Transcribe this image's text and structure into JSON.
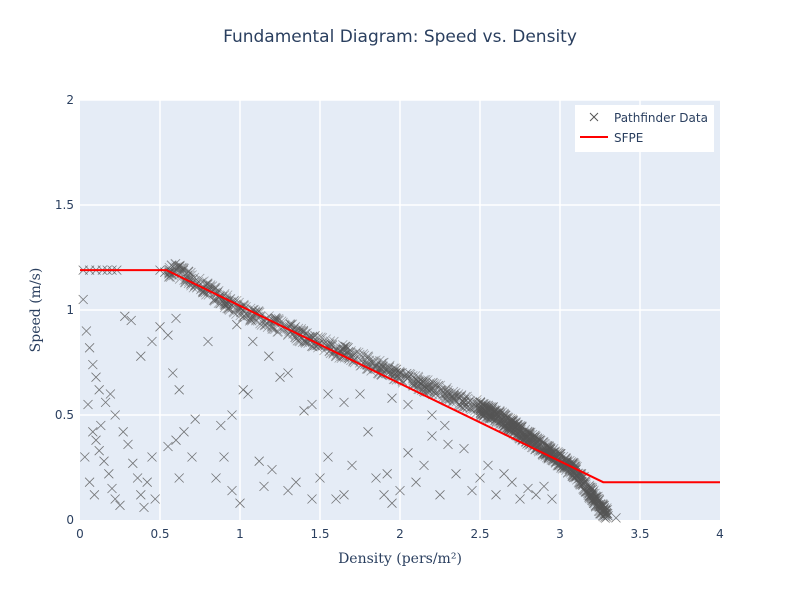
{
  "chart_data": {
    "type": "scatter",
    "title": "Fundamental Diagram: Speed vs. Density",
    "xlabel": "Density (pers/m²)",
    "ylabel": "Speed (m/s)",
    "xlim": [
      0,
      4
    ],
    "ylim": [
      0,
      2
    ],
    "x_ticks": [
      "0",
      "0.5",
      "1",
      "1.5",
      "2",
      "2.5",
      "3",
      "3.5",
      "4"
    ],
    "y_ticks": [
      "0",
      "0.5",
      "1",
      "1.5",
      "2"
    ],
    "grid": true,
    "legend_position": "top-right",
    "series": [
      {
        "name": "Pathfinder Data",
        "kind": "markers",
        "marker": "x",
        "color": "#555555",
        "points": [
          [
            0.02,
            1.19
          ],
          [
            0.06,
            1.19
          ],
          [
            0.1,
            1.19
          ],
          [
            0.14,
            1.19
          ],
          [
            0.17,
            1.19
          ],
          [
            0.2,
            1.19
          ],
          [
            0.23,
            1.19
          ],
          [
            0.5,
            1.19
          ],
          [
            0.53,
            1.18
          ],
          [
            0.56,
            1.18
          ],
          [
            0.02,
            1.05
          ],
          [
            0.04,
            0.9
          ],
          [
            0.06,
            0.82
          ],
          [
            0.08,
            0.74
          ],
          [
            0.1,
            0.68
          ],
          [
            0.12,
            0.62
          ],
          [
            0.05,
            0.55
          ],
          [
            0.08,
            0.42
          ],
          [
            0.1,
            0.38
          ],
          [
            0.12,
            0.33
          ],
          [
            0.15,
            0.28
          ],
          [
            0.18,
            0.22
          ],
          [
            0.2,
            0.15
          ],
          [
            0.22,
            0.1
          ],
          [
            0.25,
            0.07
          ],
          [
            0.03,
            0.3
          ],
          [
            0.06,
            0.18
          ],
          [
            0.09,
            0.12
          ],
          [
            0.13,
            0.45
          ],
          [
            0.16,
            0.56
          ],
          [
            0.19,
            0.6
          ],
          [
            0.22,
            0.5
          ],
          [
            0.27,
            0.42
          ],
          [
            0.3,
            0.36
          ],
          [
            0.33,
            0.27
          ],
          [
            0.36,
            0.2
          ],
          [
            0.38,
            0.12
          ],
          [
            0.4,
            0.06
          ],
          [
            0.32,
            0.95
          ],
          [
            0.28,
            0.97
          ],
          [
            0.38,
            0.78
          ],
          [
            0.45,
            0.85
          ],
          [
            0.5,
            0.92
          ],
          [
            0.55,
            0.88
          ],
          [
            0.6,
            0.96
          ],
          [
            0.58,
            0.7
          ],
          [
            0.62,
            0.62
          ],
          [
            0.65,
            0.42
          ],
          [
            0.6,
            0.38
          ],
          [
            0.55,
            0.35
          ],
          [
            0.45,
            0.3
          ],
          [
            0.42,
            0.18
          ],
          [
            0.47,
            0.1
          ],
          [
            0.62,
            0.2
          ],
          [
            0.8,
            0.85
          ],
          [
            0.88,
            0.45
          ],
          [
            0.9,
            0.3
          ],
          [
            0.95,
            0.14
          ],
          [
            1.0,
            0.08
          ],
          [
            0.85,
            0.2
          ],
          [
            1.05,
            0.6
          ],
          [
            1.12,
            0.28
          ],
          [
            1.15,
            0.16
          ],
          [
            1.2,
            0.24
          ],
          [
            1.25,
            0.68
          ],
          [
            1.3,
            0.14
          ],
          [
            1.35,
            0.18
          ],
          [
            1.4,
            0.52
          ],
          [
            1.45,
            0.1
          ],
          [
            1.5,
            0.2
          ],
          [
            1.6,
            0.1
          ],
          [
            1.7,
            0.26
          ],
          [
            1.75,
            0.6
          ],
          [
            1.8,
            0.42
          ],
          [
            1.85,
            0.2
          ],
          [
            1.9,
            0.12
          ],
          [
            1.95,
            0.08
          ],
          [
            2.0,
            0.14
          ],
          [
            2.05,
            0.32
          ],
          [
            2.1,
            0.18
          ],
          [
            2.15,
            0.26
          ],
          [
            2.2,
            0.4
          ],
          [
            2.25,
            0.12
          ],
          [
            2.3,
            0.36
          ],
          [
            2.35,
            0.22
          ],
          [
            2.4,
            0.34
          ],
          [
            2.45,
            0.14
          ],
          [
            2.5,
            0.2
          ],
          [
            2.55,
            0.26
          ],
          [
            2.6,
            0.12
          ],
          [
            2.65,
            0.22
          ],
          [
            2.7,
            0.18
          ],
          [
            2.75,
            0.1
          ],
          [
            2.8,
            0.15
          ],
          [
            2.85,
            0.12
          ],
          [
            2.9,
            0.16
          ],
          [
            2.95,
            0.1
          ],
          [
            0.98,
            0.93
          ],
          [
            1.08,
            0.85
          ],
          [
            1.18,
            0.78
          ],
          [
            1.3,
            0.7
          ],
          [
            1.45,
            0.55
          ],
          [
            1.55,
            0.6
          ],
          [
            1.65,
            0.56
          ],
          [
            1.95,
            0.58
          ],
          [
            2.05,
            0.55
          ],
          [
            2.2,
            0.5
          ],
          [
            2.28,
            0.45
          ],
          [
            1.02,
            0.62
          ],
          [
            0.95,
            0.5
          ],
          [
            0.7,
            0.3
          ],
          [
            0.72,
            0.48
          ],
          [
            1.92,
            0.22
          ],
          [
            1.55,
            0.3
          ],
          [
            1.65,
            0.12
          ],
          [
            3.3,
            0.02
          ],
          [
            3.35,
            0.01
          ],
          [
            3.25,
            0.03
          ]
        ]
      },
      {
        "name": "SFPE",
        "kind": "line",
        "color": "#ff0000",
        "x": [
          0,
          0.54,
          3.27,
          4
        ],
        "y": [
          1.19,
          1.19,
          0.18,
          0.18
        ]
      }
    ],
    "dense_band": {
      "count": 1500,
      "x_range": [
        0.55,
        3.3
      ],
      "color": "#555555"
    }
  }
}
